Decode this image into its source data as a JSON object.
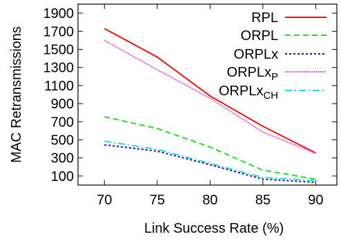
{
  "chart_data": {
    "type": "line",
    "title": "",
    "xlabel": "Link Success Rate (%)",
    "ylabel": "MAC Retransmissions",
    "xlim": [
      67.5,
      92
    ],
    "ylim": [
      0,
      2000
    ],
    "x": [
      70,
      75,
      80,
      85,
      90
    ],
    "xticks": [
      "70",
      "75",
      "80",
      "85",
      "90"
    ],
    "yticks": [
      "100",
      "300",
      "500",
      "700",
      "900",
      "1100",
      "1300",
      "1500",
      "1700",
      "1900"
    ],
    "grid": false,
    "legend_position": "top-right",
    "series": [
      {
        "name": "RPL",
        "sub": "",
        "color": "#ee1111",
        "dash": "",
        "values": [
          1730,
          1415,
          985,
          650,
          355
        ]
      },
      {
        "name": "ORPL",
        "sub": "",
        "color": "#22dd22",
        "dash": "8,5",
        "values": [
          755,
          625,
          420,
          165,
          65
        ]
      },
      {
        "name": "ORPLx",
        "sub": "",
        "color": "#1111bb",
        "dash": "3,3",
        "values": [
          445,
          375,
          225,
          65,
          30
        ]
      },
      {
        "name": "ORPLx",
        "sub": "P",
        "color": "#ee33ee",
        "dash": "1.5,1.5",
        "values": [
          1600,
          1275,
          960,
          585,
          350
        ]
      },
      {
        "name": "ORPLx",
        "sub": "CH",
        "color": "#22dddd",
        "dash": "10,4,2,4",
        "values": [
          485,
          395,
          240,
          85,
          50
        ]
      }
    ]
  }
}
